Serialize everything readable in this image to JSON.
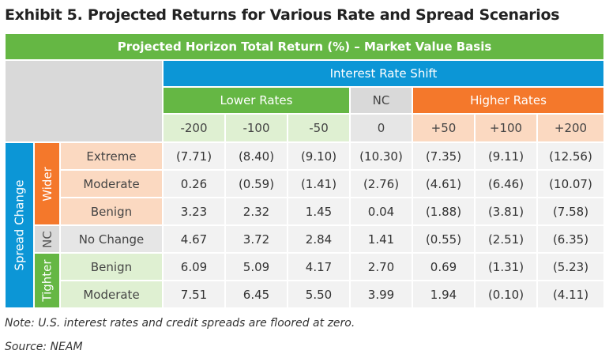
{
  "title": "Exhibit 5. Projected Returns for Various Rate and Spread Scenarios",
  "chart_data": {
    "type": "table",
    "header": "Projected Horizon Total Return (%) – Market Value Basis",
    "column_group": "Interest Rate Shift",
    "column_subgroups": [
      "Lower Rates",
      "NC",
      "Higher Rates"
    ],
    "columns": [
      "-200",
      "-100",
      "-50",
      "0",
      "+50",
      "+100",
      "+200"
    ],
    "row_group": "Spread Change",
    "row_subgroups": [
      "Wider",
      "NC",
      "Tighter"
    ],
    "rows": [
      {
        "label": "Extreme",
        "values": [
          "(7.71)",
          "(8.40)",
          "(9.10)",
          "(10.30)",
          "(7.35)",
          "(9.11)",
          "(12.56)"
        ]
      },
      {
        "label": "Moderate",
        "values": [
          "0.26",
          "(0.59)",
          "(1.41)",
          "(2.76)",
          "(4.61)",
          "(6.46)",
          "(10.07)"
        ]
      },
      {
        "label": "Benign",
        "values": [
          "3.23",
          "2.32",
          "1.45",
          "0.04",
          "(1.88)",
          "(3.81)",
          "(7.58)"
        ]
      },
      {
        "label": "No Change",
        "values": [
          "4.67",
          "3.72",
          "2.84",
          "1.41",
          "(0.55)",
          "(2.51)",
          "(6.35)"
        ]
      },
      {
        "label": "Benign",
        "values": [
          "6.09",
          "5.09",
          "4.17",
          "2.70",
          "0.69",
          "(1.31)",
          "(5.23)"
        ]
      },
      {
        "label": "Moderate",
        "values": [
          "7.51",
          "6.45",
          "5.50",
          "3.99",
          "1.94",
          "(0.10)",
          "(4.11)"
        ]
      }
    ]
  },
  "note": "Note: U.S. interest rates and credit spreads are floored at zero.",
  "source": "Source: NEAM",
  "colors": {
    "green": "#65b744",
    "blue": "#0c96d6",
    "orange": "#f4782b",
    "gray": "#d9d9d9",
    "light_gray": "#e6e6e6",
    "light_green": "#dff0d2",
    "light_orange": "#fbd9c1",
    "cell_bg": "#f2f2f2"
  }
}
